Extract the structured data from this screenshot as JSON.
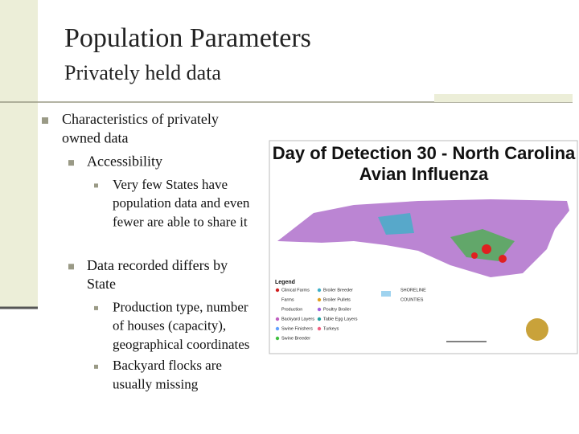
{
  "slide": {
    "title": "Population Parameters",
    "subtitle": "Privately held data",
    "bullets": [
      {
        "level": 1,
        "lines": [
          "Characteristics of privately",
          "owned data"
        ]
      },
      {
        "level": 2,
        "lines": [
          "Accessibility"
        ]
      },
      {
        "level": 3,
        "lines": [
          "Very few States have",
          "population data and even",
          "fewer are able to share it"
        ]
      },
      {
        "level": 2,
        "lines": [
          "Data recorded differs by",
          "State"
        ]
      },
      {
        "level": 3,
        "lines": [
          "Production type, number",
          "of houses (capacity),",
          "geographical coordinates"
        ]
      },
      {
        "level": 3,
        "lines": [
          "Backyard flocks are",
          "usually missing"
        ]
      }
    ],
    "map": {
      "title_lines": [
        "Day of Detection 30 - North Carolina",
        "Avian Influenza"
      ],
      "legend_title": "Legend",
      "legend_items": [
        "Clinical Farms",
        "Farms",
        "Production",
        "Backyard Layers",
        "Swine Finishers",
        "Swine Breeder",
        "Broiler Breeder",
        "Broiler Pullets",
        "Poultry Broiler",
        "Table Egg Layers",
        "Turkeys",
        "SHORELINE",
        "COUNTIES"
      ]
    }
  }
}
